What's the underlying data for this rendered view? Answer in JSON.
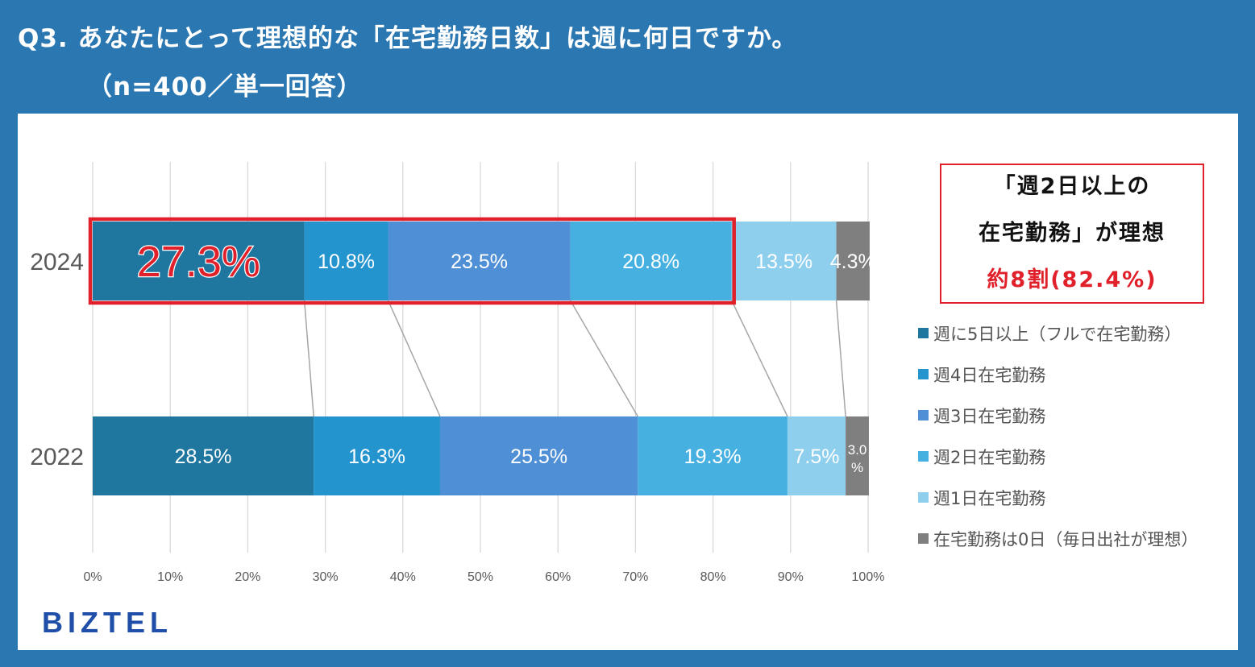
{
  "title": {
    "line1": "Q3. あなたにとって理想的な「在宅勤務日数」は週に何日ですか。",
    "line2": "（n=400／単一回答）"
  },
  "callout": {
    "line1": "「週2日以上の",
    "line2": "在宅勤務」が理想",
    "line3": "約8割(82.4%)"
  },
  "logo": "BIZTEL",
  "colors": {
    "background": "#2b77b1",
    "highlight": "#e0202a"
  },
  "chart_data": {
    "type": "bar",
    "orientation": "horizontal",
    "stacked": true,
    "normalized": true,
    "categories": [
      "2024",
      "2022"
    ],
    "xlim": [
      0,
      100
    ],
    "xticks": [
      "0%",
      "10%",
      "20%",
      "30%",
      "40%",
      "50%",
      "60%",
      "70%",
      "80%",
      "90%",
      "100%"
    ],
    "grid": true,
    "legend_position": "right",
    "series": [
      {
        "name": "週に5日以上（フルで在宅勤務）",
        "color": "#1f77a0",
        "values": [
          27.3,
          28.5
        ],
        "labels": [
          "27.3%",
          "28.5%"
        ]
      },
      {
        "name": "週4日在宅勤務",
        "color": "#2494cf",
        "values": [
          10.8,
          16.3
        ],
        "labels": [
          "10.8%",
          "16.3%"
        ]
      },
      {
        "name": "週3日在宅勤務",
        "color": "#4f8fd6",
        "values": [
          23.5,
          25.5
        ],
        "labels": [
          "23.5%",
          "25.5%"
        ]
      },
      {
        "name": "週2日在宅勤務",
        "color": "#46b1e1",
        "values": [
          20.8,
          19.3
        ],
        "labels": [
          "20.8%",
          "19.3%"
        ]
      },
      {
        "name": "週1日在宅勤務",
        "color": "#8fcfee",
        "values": [
          13.5,
          7.5
        ],
        "labels": [
          "13.5%",
          "7.5%"
        ]
      },
      {
        "name": "在宅勤務は0日（毎日出社が理想）",
        "color": "#7f7f7f",
        "values": [
          4.3,
          3.0
        ],
        "labels": [
          "4.3%",
          "3.0%"
        ]
      }
    ],
    "highlight": {
      "category": "2024",
      "from": 0,
      "to": 82.4
    },
    "emphasized_label": "27.3%"
  }
}
